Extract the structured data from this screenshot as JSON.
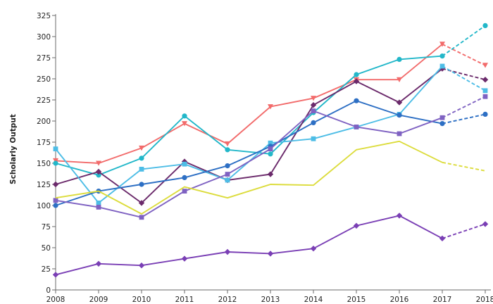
{
  "chart_data": {
    "type": "line",
    "title": "",
    "xlabel": "",
    "ylabel": "Scholarly Output",
    "x": [
      2008,
      2009,
      2010,
      2011,
      2012,
      2013,
      2014,
      2015,
      2016,
      2017,
      2018
    ],
    "x_tick_labels": [
      "2008",
      "2009",
      "2010",
      "2011",
      "2012",
      "2013",
      "2014",
      "2015",
      "2016",
      "2017",
      "2018"
    ],
    "ylim": [
      0,
      325
    ],
    "y_ticks": [
      0,
      25,
      50,
      75,
      100,
      125,
      150,
      175,
      200,
      225,
      250,
      275,
      300,
      325
    ],
    "y_tick_labels": [
      "0",
      "25",
      "50",
      "75",
      "100",
      "125",
      "150",
      "175",
      "200",
      "225",
      "250",
      "275",
      "300",
      "325"
    ],
    "grid": false,
    "legend": "none",
    "projected_final_segment": true,
    "series": [
      {
        "color": "#f26b6b",
        "marker": "triangle-down",
        "values": [
          153,
          150,
          168,
          197,
          173,
          217,
          227,
          249,
          249,
          291,
          266
        ]
      },
      {
        "color": "#22b7c9",
        "marker": "circle",
        "values": [
          150,
          136,
          156,
          206,
          166,
          161,
          210,
          255,
          273,
          277,
          313
        ]
      },
      {
        "color": "#6b2a6b",
        "marker": "diamond",
        "values": [
          125,
          140,
          103,
          152,
          130,
          137,
          219,
          247,
          222,
          262,
          249
        ]
      },
      {
        "color": "#4dbde6",
        "marker": "square",
        "values": [
          167,
          103,
          143,
          149,
          130,
          174,
          179,
          193,
          208,
          265,
          236
        ]
      },
      {
        "color": "#2d6fc4",
        "marker": "circle",
        "values": [
          100,
          117,
          125,
          133,
          147,
          170,
          198,
          224,
          207,
          197,
          208
        ]
      },
      {
        "color": "#7f62c2",
        "marker": "square",
        "values": [
          106,
          98,
          86,
          117,
          137,
          167,
          212,
          193,
          185,
          204,
          229
        ]
      },
      {
        "color": "#dcdc3c",
        "marker": "none",
        "values": [
          109,
          117,
          90,
          122,
          109,
          125,
          124,
          166,
          176,
          151,
          141
        ]
      },
      {
        "color": "#7a3fb5",
        "marker": "diamond",
        "values": [
          18,
          31,
          29,
          37,
          45,
          43,
          49,
          76,
          88,
          61,
          78
        ]
      }
    ]
  }
}
